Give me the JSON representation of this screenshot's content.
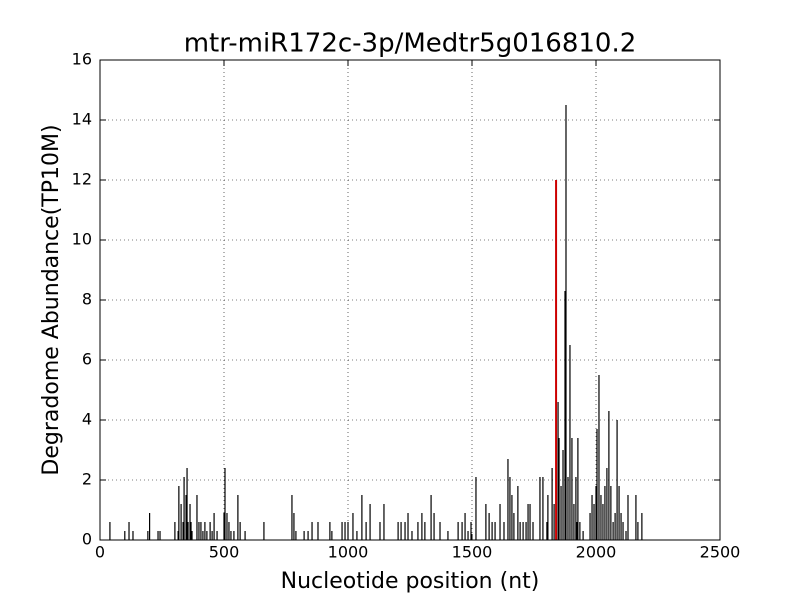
{
  "chart_data": {
    "type": "vlines",
    "title": "mtr-miR172c-3p/Medtr5g016810.2",
    "x_label": "Nucleotide position (nt)",
    "y_label": "Degradome Abundance(TP10M)",
    "xlim": [
      0,
      2500
    ],
    "xticks": [
      0,
      500,
      1000,
      1500,
      2000,
      2500
    ],
    "ylim": [
      0,
      16
    ],
    "yticks": [
      0,
      2,
      4,
      6,
      8,
      10,
      12,
      14,
      16
    ],
    "grid": true,
    "series": [
      {
        "color": "#000000",
        "x": [
          40,
          100,
          117,
          133,
          193,
          200,
          234,
          242,
          302,
          315,
          318,
          327,
          335,
          339,
          347,
          351,
          355,
          363,
          367,
          371,
          391,
          399,
          407,
          415,
          423,
          431,
          444,
          452,
          460,
          472,
          500,
          504,
          512,
          520,
          528,
          540,
          556,
          565,
          585,
          661,
          774,
          782,
          790,
          823,
          839,
          855,
          879,
          927,
          935,
          976,
          988,
          1000,
          1020,
          1036,
          1056,
          1073,
          1089,
          1129,
          1145,
          1202,
          1214,
          1230,
          1242,
          1258,
          1282,
          1298,
          1310,
          1335,
          1347,
          1371,
          1403,
          1444,
          1460,
          1472,
          1484,
          1496,
          1516,
          1556,
          1569,
          1581,
          1593,
          1613,
          1629,
          1645,
          1653,
          1661,
          1669,
          1685,
          1694,
          1706,
          1718,
          1726,
          1734,
          1746,
          1774,
          1786,
          1802,
          1806,
          1823,
          1831,
          1847,
          1851,
          1859,
          1867,
          1875,
          1879,
          1887,
          1895,
          1903,
          1911,
          1919,
          1923,
          1927,
          1935,
          1948,
          1976,
          1984,
          1992,
          2000,
          2004,
          2012,
          2020,
          2028,
          2036,
          2044,
          2052,
          2060,
          2069,
          2077,
          2085,
          2093,
          2101,
          2109,
          2121,
          2129,
          2161,
          2169,
          2185
        ],
        "values": [
          0.6,
          0.3,
          0.6,
          0.3,
          0.3,
          0.9,
          0.3,
          0.3,
          0.6,
          0.3,
          1.8,
          1.2,
          0.6,
          2.1,
          1.5,
          2.4,
          0.6,
          1.2,
          0.6,
          0.3,
          1.5,
          0.6,
          0.6,
          0.3,
          0.6,
          0.3,
          0.6,
          0.3,
          0.9,
          0.3,
          0.9,
          2.4,
          0.9,
          0.6,
          0.3,
          0.3,
          1.5,
          0.6,
          0.3,
          0.6,
          1.5,
          0.9,
          0.3,
          0.3,
          0.3,
          0.6,
          0.6,
          0.6,
          0.3,
          0.6,
          0.6,
          0.6,
          0.9,
          0.3,
          1.5,
          0.6,
          1.2,
          0.6,
          1.2,
          0.6,
          0.6,
          0.6,
          0.9,
          0.3,
          0.6,
          0.9,
          0.6,
          1.5,
          0.9,
          0.6,
          0.3,
          0.6,
          0.6,
          0.9,
          0.3,
          0.6,
          2.1,
          1.2,
          0.9,
          0.6,
          0.6,
          1.2,
          0.6,
          2.7,
          2.1,
          1.5,
          0.9,
          1.8,
          0.6,
          0.6,
          0.6,
          1.2,
          1.2,
          0.6,
          2.1,
          2.1,
          0.6,
          1.5,
          2.4,
          1.2,
          4.6,
          3.4,
          1.8,
          3.0,
          8.3,
          14.5,
          2.1,
          6.5,
          3.4,
          1.2,
          2.1,
          0.6,
          3.4,
          0.6,
          0.3,
          0.9,
          1.5,
          1.2,
          1.8,
          3.7,
          5.5,
          1.5,
          1.2,
          1.8,
          2.4,
          4.3,
          1.8,
          0.6,
          0.9,
          4.0,
          1.8,
          0.9,
          0.6,
          0.3,
          1.5,
          1.5,
          0.6,
          0.9
        ]
      },
      {
        "color": "#cc0000",
        "x": [
          1839
        ],
        "values": [
          12.0
        ]
      }
    ]
  }
}
